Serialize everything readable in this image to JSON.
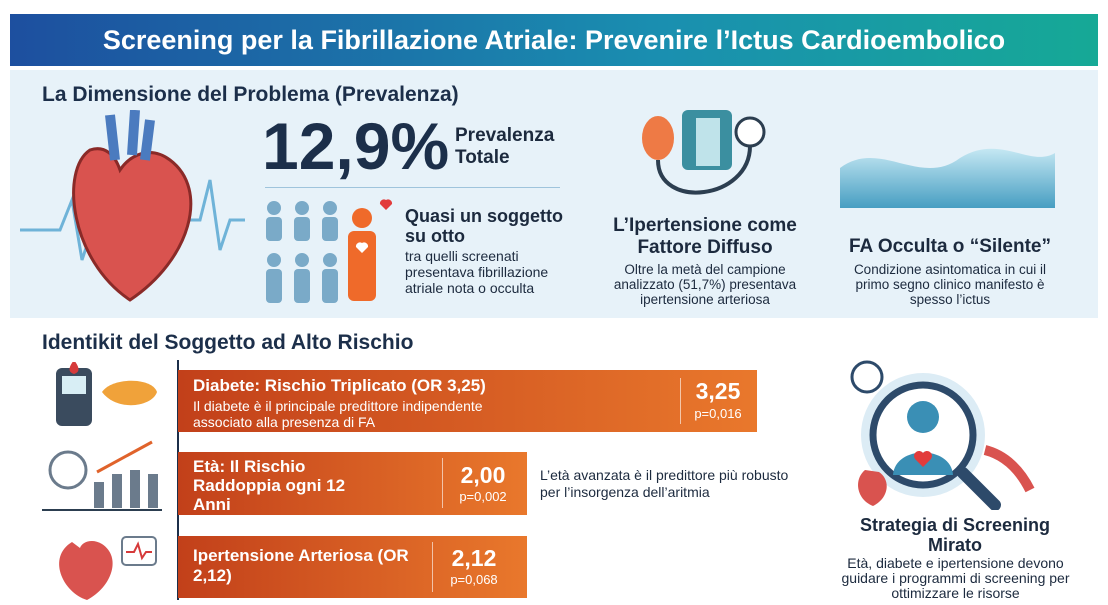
{
  "header": {
    "title": "Screening per la Fibrillazione Atriale: Prevenire l’Ictus Cardioembolico"
  },
  "prevalence": {
    "heading": "La Dimensione del Problema (Prevalenza)",
    "big_number": "12,9%",
    "big_label": "Prevalenza Totale",
    "sub_title": "Quasi un soggetto su otto",
    "sub_text": "tra quelli screenati presentava fibrillazione atriale nota o occulta"
  },
  "cards": [
    {
      "title": "L’Ipertensione come Fattore Diffuso",
      "text": "Oltre la metà del campione analizzato (51,7%) presentava ipertensione arteriosa"
    },
    {
      "title": "FA Occulta o “Silente”",
      "text": "Condizione asintomatica in cui il primo segno clinico manifesto è spesso l’ictus"
    }
  ],
  "risk": {
    "heading": "Identikit del Soggetto ad Alto Rischio",
    "factors": [
      {
        "title": "Diabete: Rischio Triplicato (OR 3,25)",
        "text": "Il diabete è il principale predittore indipendente associato alla presenza di FA",
        "value": "3,25",
        "p": "p=0,016"
      },
      {
        "title": "Età: Il Rischio Raddoppia ogni 12 Anni",
        "value": "2,00",
        "p": "p=0,002",
        "note": "L’età avanzata è il predittore più robusto per l’insorgenza dell’aritmia"
      },
      {
        "title": "Ipertensione Arteriosa (OR 2,12)",
        "value": "2,12",
        "p": "p=0,068"
      }
    ]
  },
  "strategy": {
    "title": "Strategia di Screening Mirato",
    "text": "Età, diabete e ipertensione devono guidare i programmi di screening per ottimizzare le risorse"
  }
}
